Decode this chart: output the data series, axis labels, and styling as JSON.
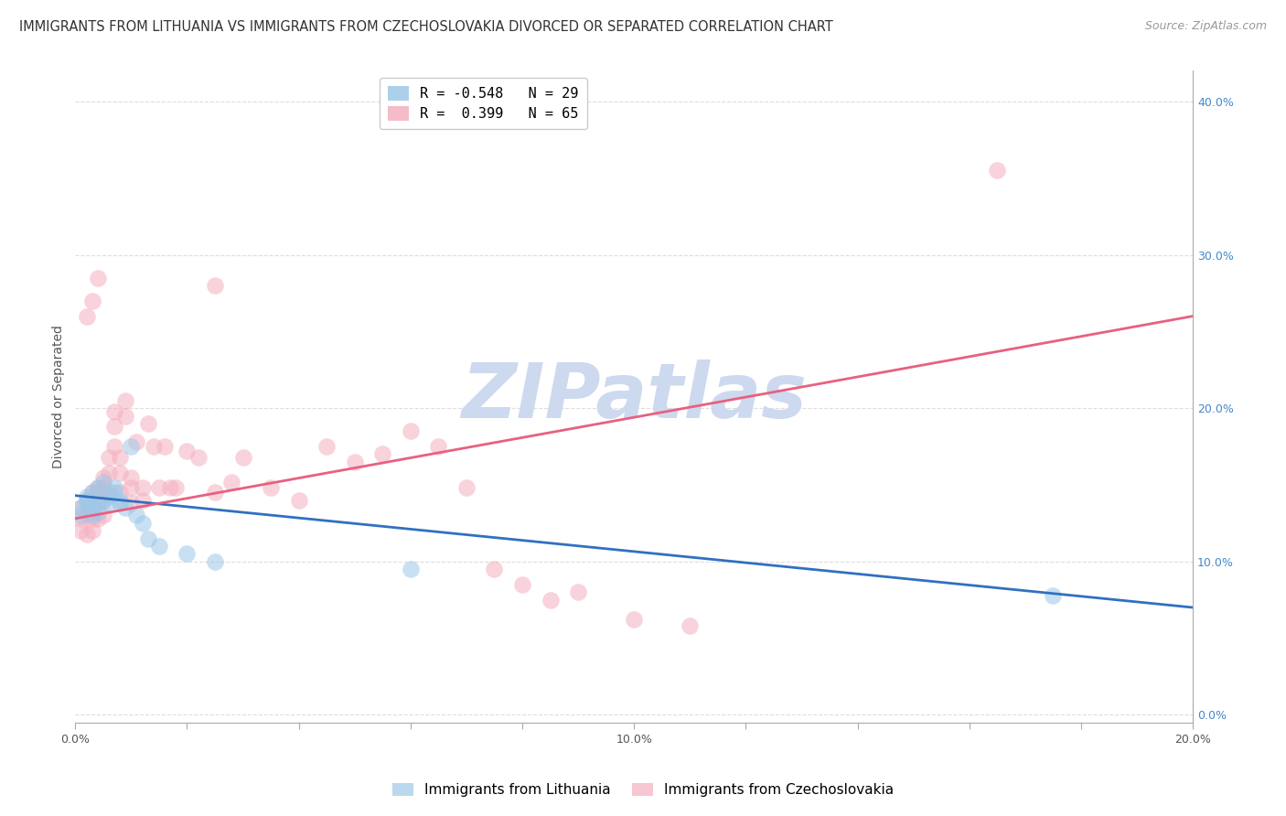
{
  "title": "IMMIGRANTS FROM LITHUANIA VS IMMIGRANTS FROM CZECHOSLOVAKIA DIVORCED OR SEPARATED CORRELATION CHART",
  "source": "Source: ZipAtlas.com",
  "ylabel": "Divorced or Separated",
  "legend_label_lithuania": "Immigrants from Lithuania",
  "legend_label_czechoslovakia": "Immigrants from Czechoslovakia",
  "legend_r_lithuania": "R = -0.548",
  "legend_n_lithuania": "N = 29",
  "legend_r_czechoslovakia": "R =  0.399",
  "legend_n_czechoslovakia": "N = 65",
  "xlim": [
    0.0,
    0.2
  ],
  "ylim": [
    -0.005,
    0.42
  ],
  "x_ticks": [
    0.0,
    0.02,
    0.04,
    0.06,
    0.08,
    0.1,
    0.12,
    0.14,
    0.16,
    0.18,
    0.2
  ],
  "x_tick_labels_show": [
    0.0,
    0.1,
    0.2
  ],
  "y_ticks_right": [
    0.0,
    0.1,
    0.2,
    0.3,
    0.4
  ],
  "y_tick_labels_right": [
    "0.0%",
    "10.0%",
    "20.0%",
    "30.0%",
    "40.0%"
  ],
  "grid_color": "#dddddd",
  "background_color": "#ffffff",
  "watermark": "ZIPatlas",
  "watermark_color": "#cdd9ee",
  "lithuania_x": [
    0.001,
    0.001,
    0.002,
    0.002,
    0.002,
    0.003,
    0.003,
    0.003,
    0.004,
    0.004,
    0.004,
    0.005,
    0.005,
    0.006,
    0.006,
    0.007,
    0.007,
    0.008,
    0.008,
    0.009,
    0.01,
    0.011,
    0.012,
    0.013,
    0.015,
    0.02,
    0.025,
    0.06,
    0.175
  ],
  "lithuania_y": [
    0.135,
    0.13,
    0.14,
    0.138,
    0.142,
    0.145,
    0.135,
    0.13,
    0.148,
    0.138,
    0.132,
    0.152,
    0.14,
    0.143,
    0.138,
    0.145,
    0.148,
    0.14,
    0.138,
    0.135,
    0.175,
    0.13,
    0.125,
    0.115,
    0.11,
    0.105,
    0.1,
    0.095,
    0.078
  ],
  "czechoslovakia_x": [
    0.001,
    0.001,
    0.001,
    0.002,
    0.002,
    0.002,
    0.003,
    0.003,
    0.003,
    0.003,
    0.004,
    0.004,
    0.004,
    0.004,
    0.005,
    0.005,
    0.005,
    0.005,
    0.006,
    0.006,
    0.006,
    0.007,
    0.007,
    0.007,
    0.008,
    0.008,
    0.008,
    0.009,
    0.009,
    0.01,
    0.01,
    0.01,
    0.011,
    0.012,
    0.012,
    0.013,
    0.014,
    0.015,
    0.016,
    0.017,
    0.018,
    0.02,
    0.022,
    0.025,
    0.028,
    0.03,
    0.035,
    0.04,
    0.045,
    0.05,
    0.055,
    0.06,
    0.065,
    0.07,
    0.075,
    0.08,
    0.085,
    0.09,
    0.1,
    0.11,
    0.002,
    0.003,
    0.004,
    0.165,
    0.025
  ],
  "czechoslovakia_y": [
    0.135,
    0.128,
    0.12,
    0.14,
    0.13,
    0.118,
    0.145,
    0.138,
    0.128,
    0.12,
    0.148,
    0.145,
    0.138,
    0.128,
    0.155,
    0.148,
    0.14,
    0.13,
    0.168,
    0.158,
    0.145,
    0.198,
    0.188,
    0.175,
    0.168,
    0.158,
    0.145,
    0.205,
    0.195,
    0.155,
    0.148,
    0.138,
    0.178,
    0.148,
    0.14,
    0.19,
    0.175,
    0.148,
    0.175,
    0.148,
    0.148,
    0.172,
    0.168,
    0.145,
    0.152,
    0.168,
    0.148,
    0.14,
    0.175,
    0.165,
    0.17,
    0.185,
    0.175,
    0.148,
    0.095,
    0.085,
    0.075,
    0.08,
    0.062,
    0.058,
    0.26,
    0.27,
    0.285,
    0.355,
    0.28
  ],
  "blue_color": "#9ec8e8",
  "pink_color": "#f4b0c0",
  "blue_line_color": "#3070c0",
  "pink_line_color": "#e86080",
  "blue_line_x0": 0.0,
  "blue_line_y0": 0.143,
  "blue_line_x1": 0.2,
  "blue_line_y1": 0.07,
  "pink_line_x0": 0.0,
  "pink_line_y0": 0.128,
  "pink_line_x1": 0.2,
  "pink_line_y1": 0.26,
  "title_fontsize": 10.5,
  "source_fontsize": 9,
  "axis_label_fontsize": 10,
  "tick_fontsize": 9,
  "legend_fontsize": 11,
  "watermark_fontsize": 60
}
